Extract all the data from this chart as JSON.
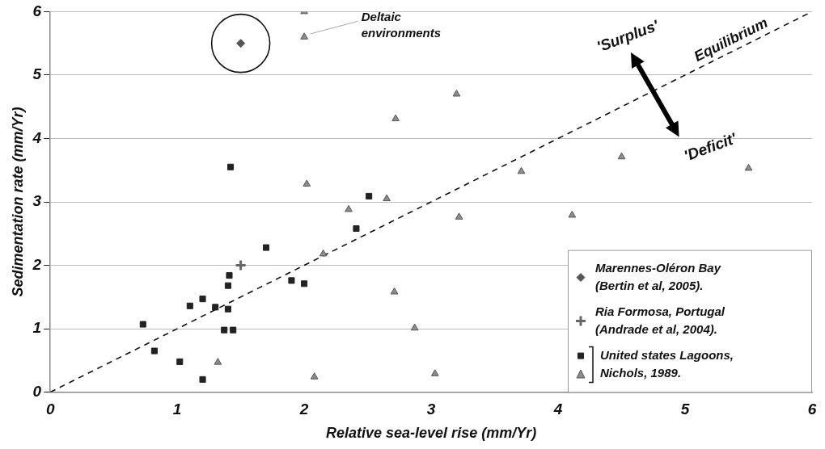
{
  "chart_data": {
    "type": "scatter",
    "xlabel": "Relative sea-level rise (mm/Yr)",
    "ylabel": "Sedimentation rate (mm/Yr)",
    "xlim": [
      0,
      6
    ],
    "xticks": [
      0,
      1,
      2,
      3,
      4,
      5,
      6
    ],
    "ylim": [
      0,
      6
    ],
    "yticks": [
      0,
      1,
      2,
      3,
      4,
      5,
      6
    ],
    "grid": "y",
    "legend": "bottom right",
    "annotations": [
      "'Surplus'",
      "'Deficit'",
      "Deltaic environments"
    ],
    "series": [
      {
        "name": "Marennes-Oléron Bay (Bertin et al, 2005).",
        "color": "#555555",
        "marker": "diamond",
        "x": [
          1.5
        ],
        "values": [
          5.5
        ]
      },
      {
        "name": "Ria Formosa, Portugal (Andrade et al, 2004).",
        "color": "#666666",
        "marker": "cross",
        "x": [
          1.5
        ],
        "values": [
          2.0
        ]
      },
      {
        "name": "United states Lagoons, Nichols, 1989.",
        "color": "#222222",
        "marker": "square",
        "x": [
          0.73,
          0.82,
          1.02,
          1.1,
          1.2,
          1.3,
          1.4,
          1.4,
          1.41,
          1.37,
          1.44,
          1.2,
          1.7,
          1.9,
          2.0,
          2.41,
          2.51,
          1.42
        ],
        "values": [
          1.07,
          0.65,
          0.48,
          1.36,
          1.47,
          1.34,
          1.31,
          1.68,
          1.84,
          0.98,
          0.98,
          0.2,
          2.28,
          1.76,
          1.71,
          2.58,
          3.09,
          3.55
        ]
      },
      {
        "color": "#8c8c8c",
        "marker": "triangle",
        "x": [
          2.0,
          2.0,
          2.02,
          2.72,
          3.2,
          2.35,
          2.65,
          2.15,
          2.71,
          2.87,
          3.03,
          2.08,
          1.32,
          3.22,
          3.71,
          4.11,
          4.5,
          5.5
        ],
        "values": [
          6.0,
          5.6,
          3.28,
          4.31,
          4.7,
          2.88,
          3.05,
          2.18,
          1.58,
          1.01,
          0.29,
          0.24,
          0.47,
          2.76,
          3.48,
          2.79,
          3.71,
          3.53
        ]
      },
      {
        "name": "Equilibrium",
        "type": "line",
        "color": "#111111",
        "line_style": "dashed",
        "marker": "none",
        "x": [
          0,
          6
        ],
        "values": [
          0,
          6
        ]
      }
    ]
  }
}
